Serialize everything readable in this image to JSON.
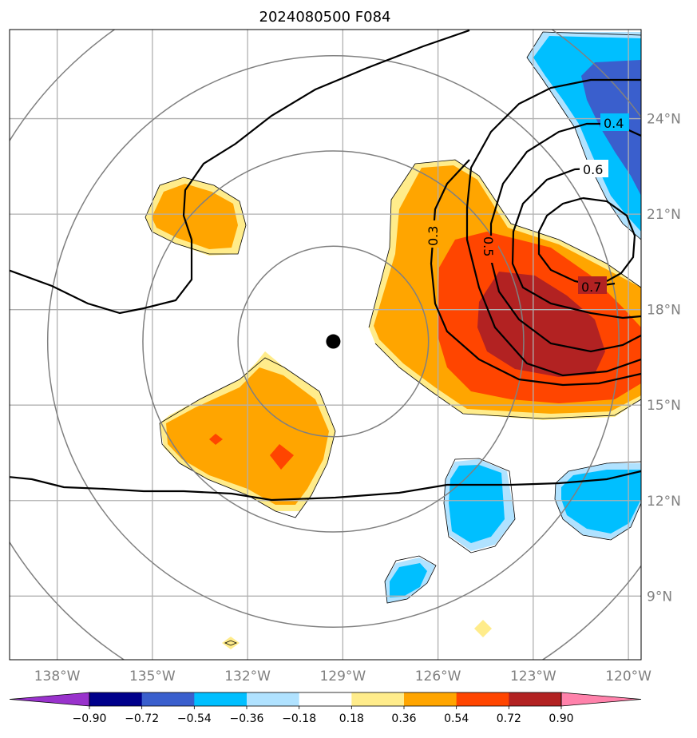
{
  "chart_data": {
    "type": "contour_map",
    "title": "2024080500 F084",
    "x_ticks": [
      "138°W",
      "135°W",
      "132°W",
      "129°W",
      "126°W",
      "123°W",
      "120°W"
    ],
    "y_ticks": [
      "24°N",
      "21°N",
      "18°N",
      "15°N",
      "12°N",
      "9°N"
    ],
    "lon_range": [
      -139.5,
      -119.6
    ],
    "lat_range": [
      7.0,
      26.8
    ],
    "grid": true,
    "center_marker": {
      "lon": -129.3,
      "lat": 17.0
    },
    "range_rings_deg": [
      3,
      6,
      9,
      12
    ],
    "colorbar": {
      "levels": [
        "−0.90",
        "−0.72",
        "−0.54",
        "−0.36",
        "−0.18",
        "0.18",
        "0.36",
        "0.54",
        "0.72",
        "0.90"
      ],
      "colors": [
        "#9932cc",
        "#00008b",
        "#3a5fcd",
        "#00bfff",
        "#b0e2ff",
        "#ffffff",
        "#ffec8b",
        "#ffa500",
        "#ff4500",
        "#b22222",
        "#ff82ab"
      ],
      "extend": "both",
      "placement": "bottom"
    },
    "contour_labels": [
      "0.3",
      "0.4",
      "0.5",
      "0.6",
      "0.7"
    ]
  }
}
